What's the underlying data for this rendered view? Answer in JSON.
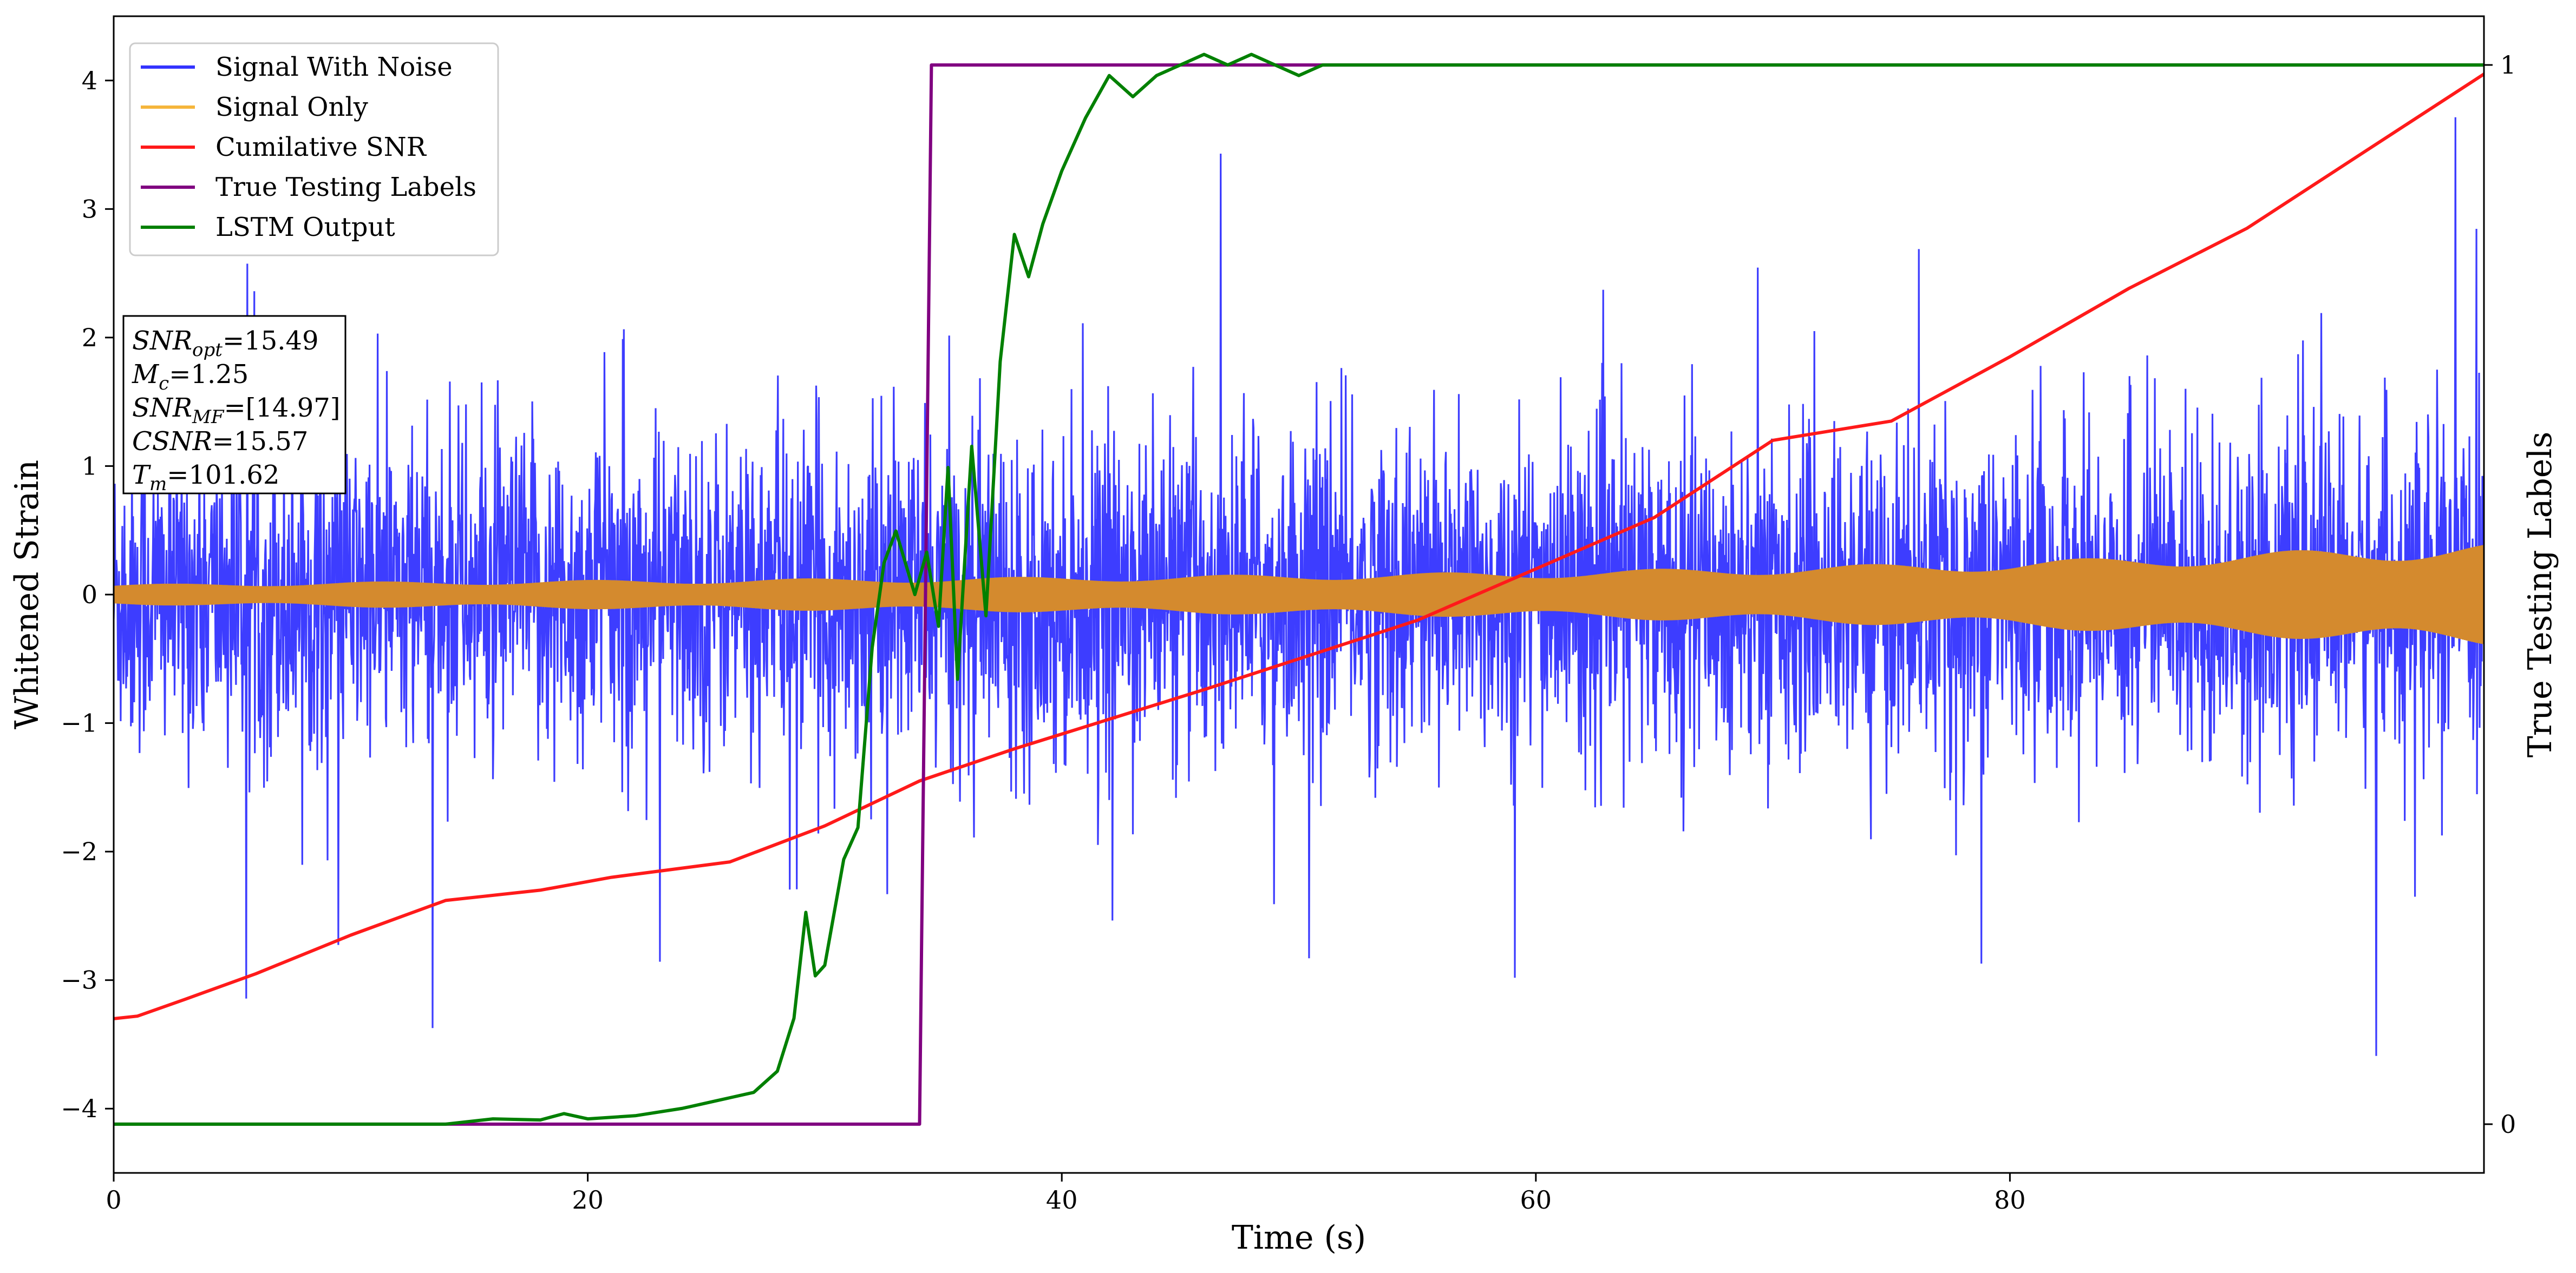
{
  "chart_data": {
    "type": "line",
    "xlabel": "Time (s)",
    "ylabel": "Whitened Strain",
    "y2label": "True Testing Labels",
    "xlim": [
      0,
      100
    ],
    "ylim": [
      -4.5,
      4.5
    ],
    "y2lim": [
      -0.046,
      1.046
    ],
    "xticks": [
      0,
      20,
      40,
      60,
      80
    ],
    "yticks": [
      -4,
      -3,
      -2,
      -1,
      0,
      1,
      2,
      3,
      4
    ],
    "y2ticks": [
      0,
      1
    ],
    "colors": {
      "signal_with_noise": "#3333ff",
      "signal_only": "#d48a2e",
      "cumulative_snr": "#ff1a1a",
      "true_labels": "#800080",
      "lstm_output": "#008000"
    },
    "legend": {
      "position": "upper-left",
      "entries": [
        {
          "label": "Signal With Noise",
          "color": "#3333ff"
        },
        {
          "label": "Signal Only",
          "color": "#f5b53b"
        },
        {
          "label": "Cumilative SNR",
          "color": "#ff1a1a"
        },
        {
          "label": "True Testing Labels",
          "color": "#800080"
        },
        {
          "label": "LSTM Output",
          "color": "#008000"
        }
      ]
    },
    "info_box": [
      {
        "sym": "SNR",
        "sub": "opt",
        "val": "=15.49"
      },
      {
        "sym": "M",
        "sub": "c",
        "val": "=1.25"
      },
      {
        "sym": "SNR",
        "sub": "MF",
        "val": "=[14.97]"
      },
      {
        "sym": "CSNR",
        "sub": "",
        "val": "=15.57"
      },
      {
        "sym": "T",
        "sub": "m",
        "val": "=101.62"
      }
    ],
    "series": [
      {
        "name": "Signal With Noise",
        "axis": "left",
        "description_points": "dense noise, amplitude ~ ±1.5 typical, spikes to ±4",
        "amplitude_envelope": [
          1.5,
          4.0
        ]
      },
      {
        "name": "Signal Only",
        "axis": "left",
        "envelope": {
          "x": [
            0,
            10,
            25,
            40,
            60,
            80,
            100
          ],
          "amp": [
            0.08,
            0.1,
            0.12,
            0.14,
            0.18,
            0.26,
            0.4
          ]
        }
      },
      {
        "name": "Cumilative SNR",
        "axis": "left",
        "x": [
          0,
          1,
          3,
          6,
          10,
          14,
          18,
          21,
          26,
          30,
          34,
          38,
          42,
          46,
          50,
          55,
          60,
          65,
          70,
          75,
          80,
          85,
          90,
          95,
          100
        ],
        "y": [
          -3.3,
          -3.28,
          -3.15,
          -2.95,
          -2.65,
          -2.38,
          -2.3,
          -2.2,
          -2.08,
          -1.8,
          -1.45,
          -1.2,
          -0.97,
          -0.74,
          -0.5,
          -0.2,
          0.2,
          0.6,
          1.2,
          1.35,
          1.85,
          2.38,
          2.85,
          3.45,
          4.05
        ]
      },
      {
        "name": "True Testing Labels",
        "axis": "right",
        "x": [
          0,
          34,
          34.5,
          100
        ],
        "y": [
          0,
          0,
          1,
          1
        ]
      },
      {
        "name": "LSTM Output",
        "axis": "right",
        "x": [
          0,
          14,
          16,
          18,
          19,
          20,
          22,
          24,
          26,
          27,
          28,
          28.7,
          29.2,
          29.6,
          30,
          30.8,
          31.4,
          32,
          32.5,
          33,
          33.8,
          34.3,
          34.8,
          35.2,
          35.6,
          36.2,
          36.8,
          37.4,
          38,
          38.6,
          39.2,
          40,
          41,
          42,
          43,
          44,
          45,
          46,
          47,
          48,
          49,
          50,
          51,
          52,
          54,
          56,
          58,
          60,
          62,
          64,
          70,
          80,
          90,
          100
        ],
        "y": [
          0,
          0,
          0.005,
          0.004,
          0.01,
          0.005,
          0.008,
          0.015,
          0.025,
          0.03,
          0.05,
          0.1,
          0.2,
          0.14,
          0.15,
          0.25,
          0.28,
          0.45,
          0.53,
          0.56,
          0.5,
          0.54,
          0.47,
          0.62,
          0.42,
          0.64,
          0.48,
          0.72,
          0.84,
          0.8,
          0.85,
          0.9,
          0.95,
          0.99,
          0.97,
          0.99,
          1.0,
          1.01,
          1.0,
          1.01,
          1.0,
          0.99,
          1.0,
          1.0,
          1.0,
          1.0,
          1.0,
          1.0,
          1.0,
          1.0,
          1.0,
          1.0,
          1.0,
          1.0
        ]
      }
    ]
  }
}
